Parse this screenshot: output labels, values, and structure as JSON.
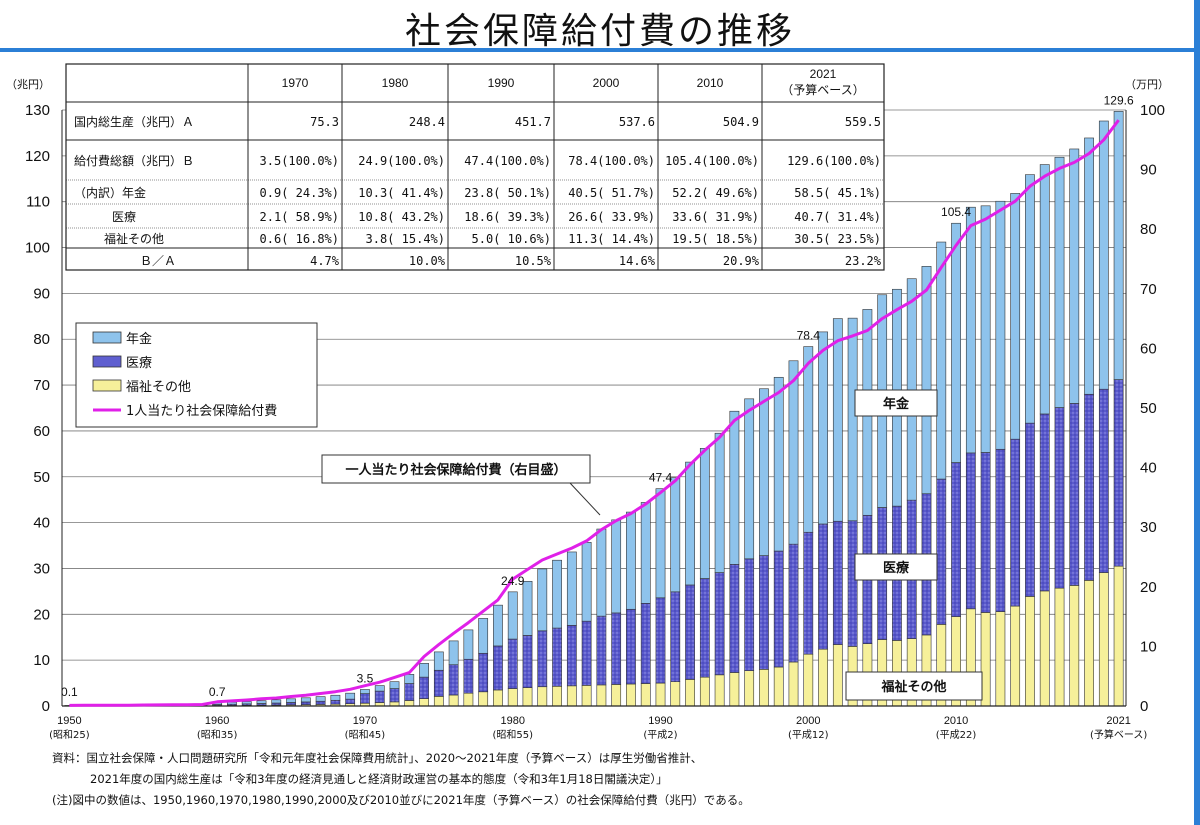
{
  "title": "社会保障給付費の推移",
  "units": {
    "left": "（兆円）",
    "right": "（万円）"
  },
  "table": {
    "headers": [
      "1970",
      "1980",
      "1990",
      "2000",
      "2010",
      "2021"
    ],
    "header_sub_2021": "（予算ベース）",
    "rows": [
      {
        "label": "国内総生産（兆円）Ａ",
        "values": [
          "75.3",
          "248.4",
          "451.7",
          "537.6",
          "504.9",
          "559.5"
        ]
      },
      {
        "label": "給付費総額（兆円）Ｂ",
        "values": [
          "3.5(100.0%)",
          "24.9(100.0%)",
          "47.4(100.0%)",
          "78.4(100.0%)",
          "105.4(100.0%)",
          "129.6(100.0%)"
        ]
      },
      {
        "label": "（内訳）年金",
        "values": [
          "0.9( 24.3%)",
          "10.3( 41.4%)",
          "23.8( 50.1%)",
          "40.5( 51.7%)",
          "52.2( 49.6%)",
          "58.5( 45.1%)"
        ]
      },
      {
        "label": "医療",
        "values": [
          "2.1( 58.9%)",
          "10.8( 43.2%)",
          "18.6( 39.3%)",
          "26.6( 33.9%)",
          "33.6( 31.9%)",
          "40.7( 31.4%)"
        ]
      },
      {
        "label": "福祉その他",
        "values": [
          "0.6( 16.8%)",
          "3.8( 15.4%)",
          "5.0( 10.6%)",
          "11.3( 14.4%)",
          "19.5( 18.5%)",
          "30.5( 23.5%)"
        ]
      },
      {
        "label": "Ｂ／Ａ",
        "values": [
          "4.7%",
          "10.0%",
          "10.5%",
          "14.6%",
          "20.9%",
          "23.2%"
        ]
      }
    ]
  },
  "legend": {
    "items": [
      {
        "label": "年金",
        "color": "#8ec3ec"
      },
      {
        "label": "医療",
        "color": "#5f5fd0"
      },
      {
        "label": "福祉その他",
        "color": "#f6f09a"
      },
      {
        "label": "1人当たり社会保障給付費",
        "color": "#e020e8"
      }
    ]
  },
  "boxes": {
    "pension": "年金",
    "medical": "医療",
    "welfare": "福祉その他",
    "per_capita": "一人当たり社会保障給付費（右目盛）"
  },
  "notes": [
    "資料：国立社会保障・人口問題研究所「令和元年度社会保障費用統計」、2020～2021年度（予算ベース）は厚生労働省推計、",
    "2021年度の国内総生産は「令和3年度の経済見通しと経済財政運営の基本的態度（令和3年1月18日閣議決定）」",
    "(注)図中の数値は、1950,1960,1970,1980,1990,2000及び2010並びに2021年度（予算ベース）の社会保障給付費（兆円）である。"
  ],
  "chart_data": {
    "type": "bar",
    "stacked": true,
    "x": [
      1950,
      1951,
      1952,
      1953,
      1954,
      1955,
      1956,
      1957,
      1958,
      1959,
      1960,
      1961,
      1962,
      1963,
      1964,
      1965,
      1966,
      1967,
      1968,
      1969,
      1970,
      1971,
      1972,
      1973,
      1974,
      1975,
      1976,
      1977,
      1978,
      1979,
      1980,
      1981,
      1982,
      1983,
      1984,
      1985,
      1986,
      1987,
      1988,
      1989,
      1990,
      1991,
      1992,
      1993,
      1994,
      1995,
      1996,
      1997,
      1998,
      1999,
      2000,
      2001,
      2002,
      2003,
      2004,
      2005,
      2006,
      2007,
      2008,
      2009,
      2010,
      2011,
      2012,
      2013,
      2014,
      2015,
      2016,
      2017,
      2018,
      2019,
      2020,
      2021
    ],
    "x_tick_labels": [
      {
        "x": 1950,
        "label": "1950",
        "sub": "(昭和25)"
      },
      {
        "x": 1960,
        "label": "1960",
        "sub": "(昭和35)"
      },
      {
        "x": 1970,
        "label": "1970",
        "sub": "(昭和45)"
      },
      {
        "x": 1980,
        "label": "1980",
        "sub": "(昭和55)"
      },
      {
        "x": 1990,
        "label": "1990",
        "sub": "(平成2)"
      },
      {
        "x": 2000,
        "label": "2000",
        "sub": "(平成12)"
      },
      {
        "x": 2010,
        "label": "2010",
        "sub": "(平成22)"
      },
      {
        "x": 2021,
        "label": "2021",
        "sub": "(予算ベース)"
      }
    ],
    "series": [
      {
        "name": "福祉その他",
        "color": "#f6f09a",
        "values": [
          0.03,
          0.03,
          0.04,
          0.04,
          0.05,
          0.05,
          0.06,
          0.07,
          0.08,
          0.09,
          0.11,
          0.13,
          0.15,
          0.18,
          0.21,
          0.25,
          0.29,
          0.34,
          0.4,
          0.5,
          0.6,
          0.75,
          0.9,
          1.2,
          1.6,
          2.1,
          2.4,
          2.8,
          3.1,
          3.5,
          3.8,
          4.0,
          4.2,
          4.3,
          4.4,
          4.5,
          4.6,
          4.7,
          4.8,
          4.9,
          5.0,
          5.3,
          5.8,
          6.3,
          6.8,
          7.3,
          7.7,
          8.0,
          8.5,
          9.6,
          11.3,
          12.4,
          13.4,
          13.0,
          13.6,
          14.5,
          14.3,
          14.7,
          15.5,
          17.8,
          19.5,
          21.2,
          20.4,
          20.6,
          21.8,
          23.9,
          25.1,
          25.7,
          26.3,
          27.4,
          29.1,
          30.5
        ]
      },
      {
        "name": "医療",
        "color": "#5f5fd0",
        "values": [
          0.05,
          0.06,
          0.07,
          0.09,
          0.1,
          0.12,
          0.13,
          0.15,
          0.17,
          0.19,
          0.22,
          0.26,
          0.31,
          0.37,
          0.44,
          0.52,
          0.6,
          0.7,
          0.85,
          1.0,
          2.1,
          2.5,
          2.9,
          3.7,
          4.7,
          5.7,
          6.6,
          7.4,
          8.4,
          9.6,
          10.8,
          11.4,
          12.2,
          12.7,
          13.2,
          14.0,
          15.0,
          15.6,
          16.3,
          17.5,
          18.6,
          19.6,
          20.6,
          21.5,
          22.3,
          23.6,
          24.4,
          24.8,
          25.3,
          25.7,
          26.6,
          27.3,
          26.9,
          27.4,
          28.0,
          28.8,
          29.3,
          30.2,
          30.8,
          31.7,
          33.6,
          34.0,
          34.9,
          35.4,
          36.4,
          37.8,
          38.6,
          39.4,
          39.7,
          40.6,
          40.0,
          40.7
        ]
      },
      {
        "name": "年金",
        "color": "#8ec3ec",
        "values": [
          0.02,
          0.02,
          0.03,
          0.03,
          0.04,
          0.05,
          0.06,
          0.07,
          0.08,
          0.09,
          0.37,
          0.45,
          0.52,
          0.6,
          0.7,
          0.8,
          0.9,
          1.0,
          1.1,
          1.3,
          0.9,
          1.2,
          1.5,
          2.0,
          3.0,
          4.0,
          5.2,
          6.4,
          7.6,
          8.9,
          10.3,
          11.8,
          13.5,
          14.8,
          16.0,
          17.2,
          19.0,
          20.3,
          21.2,
          22.0,
          23.8,
          24.9,
          26.8,
          28.4,
          30.4,
          33.4,
          34.9,
          36.4,
          37.9,
          40.0,
          40.5,
          41.9,
          44.2,
          44.2,
          44.9,
          46.4,
          47.3,
          48.3,
          49.6,
          51.7,
          52.2,
          53.6,
          53.8,
          54.1,
          53.6,
          54.2,
          54.4,
          54.6,
          55.5,
          55.9,
          58.5,
          58.5
        ]
      }
    ],
    "per_capita": {
      "name": "1人当たり社会保障給付費",
      "axis": "right",
      "color": "#e020e8",
      "values": [
        0.1,
        0.11,
        0.12,
        0.13,
        0.14,
        0.16,
        0.18,
        0.2,
        0.22,
        0.25,
        0.7,
        0.85,
        1.0,
        1.2,
        1.35,
        1.6,
        1.8,
        2.1,
        2.4,
        2.8,
        3.4,
        4.0,
        4.8,
        5.6,
        8.3,
        10.3,
        12.2,
        14.0,
        15.9,
        17.8,
        21.3,
        22.9,
        24.5,
        25.5,
        26.5,
        27.7,
        29.6,
        31.1,
        32.3,
        33.9,
        35.8,
        37.8,
        40.5,
        42.9,
        45.1,
        47.9,
        49.6,
        51.1,
        52.6,
        54.6,
        57.5,
        59.7,
        61.3,
        62.1,
        63.0,
        65.0,
        66.5,
        67.9,
        69.8,
        73.6,
        77.3,
        80.6,
        81.7,
        83.2,
        84.7,
        87.2,
        88.9,
        90.2,
        91.2,
        92.7,
        95.0,
        98.3
      ]
    },
    "data_labels": [
      {
        "x": 1950,
        "text": "0.1"
      },
      {
        "x": 1960,
        "text": "0.7"
      },
      {
        "x": 1970,
        "text": "3.5"
      },
      {
        "x": 1980,
        "text": "24.9"
      },
      {
        "x": 1990,
        "text": "47.4"
      },
      {
        "x": 2000,
        "text": "78.4"
      },
      {
        "x": 2010,
        "text": "105.4"
      },
      {
        "x": 2021,
        "text": "129.6"
      }
    ],
    "ylim": [
      0,
      130
    ],
    "yticks": [
      0,
      10,
      20,
      30,
      40,
      50,
      60,
      70,
      80,
      90,
      100,
      110,
      120,
      130
    ],
    "y2lim": [
      0,
      100
    ],
    "y2ticks": [
      0,
      10,
      20,
      30,
      40,
      50,
      60,
      70,
      80,
      90,
      100
    ],
    "grid": true,
    "legend_position": "left-middle"
  }
}
